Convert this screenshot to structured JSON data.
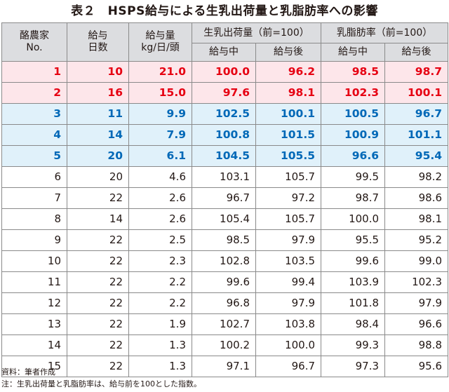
{
  "title": "表２　HSPS給与による生乳出荷量と乳脂肪率への影響",
  "headers": {
    "farm": "酪農家\nNo.",
    "days": "給与\n日数",
    "amount": "給与量\nkg/日/頭",
    "milk_group": "生乳出荷量（前=100）",
    "fat_group": "乳脂肪率（前=100）",
    "during": "給与中",
    "after": "給与後"
  },
  "colors": {
    "red_text": "#e60012",
    "blue_text": "#0068b7",
    "pink_bg": "#fde6ea",
    "blue_bg": "#e0f1fa",
    "header_bg": "#dcdde0"
  },
  "rows": [
    {
      "no": "1",
      "days": "10",
      "amount": "21.0",
      "milk_during": "100.0",
      "milk_after": "96.2",
      "fat_during": "98.5",
      "fat_after": "98.7",
      "style": "red"
    },
    {
      "no": "2",
      "days": "16",
      "amount": "15.0",
      "milk_during": "97.6",
      "milk_after": "98.1",
      "fat_during": "102.3",
      "fat_after": "100.1",
      "style": "red"
    },
    {
      "no": "3",
      "days": "11",
      "amount": "9.9",
      "milk_during": "102.5",
      "milk_after": "100.1",
      "fat_during": "100.5",
      "fat_after": "96.7",
      "style": "blue"
    },
    {
      "no": "4",
      "days": "14",
      "amount": "7.9",
      "milk_during": "100.8",
      "milk_after": "101.5",
      "fat_during": "100.9",
      "fat_after": "101.1",
      "style": "blue"
    },
    {
      "no": "5",
      "days": "20",
      "amount": "6.1",
      "milk_during": "104.5",
      "milk_after": "105.5",
      "fat_during": "96.6",
      "fat_after": "95.4",
      "style": "blue"
    },
    {
      "no": "6",
      "days": "20",
      "amount": "4.6",
      "milk_during": "103.1",
      "milk_after": "105.7",
      "fat_during": "99.5",
      "fat_after": "98.2",
      "style": "plain"
    },
    {
      "no": "7",
      "days": "22",
      "amount": "2.6",
      "milk_during": "96.7",
      "milk_after": "97.2",
      "fat_during": "98.7",
      "fat_after": "98.6",
      "style": "plain"
    },
    {
      "no": "8",
      "days": "14",
      "amount": "2.6",
      "milk_during": "105.4",
      "milk_after": "105.7",
      "fat_during": "100.0",
      "fat_after": "98.1",
      "style": "plain"
    },
    {
      "no": "9",
      "days": "22",
      "amount": "2.5",
      "milk_during": "98.5",
      "milk_after": "97.9",
      "fat_during": "95.5",
      "fat_after": "95.2",
      "style": "plain"
    },
    {
      "no": "10",
      "days": "22",
      "amount": "2.3",
      "milk_during": "102.8",
      "milk_after": "103.5",
      "fat_during": "99.6",
      "fat_after": "99.0",
      "style": "plain"
    },
    {
      "no": "11",
      "days": "22",
      "amount": "2.2",
      "milk_during": "99.6",
      "milk_after": "99.4",
      "fat_during": "103.9",
      "fat_after": "102.3",
      "style": "plain"
    },
    {
      "no": "12",
      "days": "22",
      "amount": "2.2",
      "milk_during": "96.8",
      "milk_after": "97.9",
      "fat_during": "101.8",
      "fat_after": "97.9",
      "style": "plain"
    },
    {
      "no": "13",
      "days": "22",
      "amount": "1.9",
      "milk_during": "102.7",
      "milk_after": "103.8",
      "fat_during": "98.4",
      "fat_after": "96.6",
      "style": "plain"
    },
    {
      "no": "14",
      "days": "22",
      "amount": "1.3",
      "milk_during": "100.2",
      "milk_after": "100.0",
      "fat_during": "99.3",
      "fat_after": "98.8",
      "style": "plain"
    },
    {
      "no": "15",
      "days": "22",
      "amount": "1.3",
      "milk_during": "97.1",
      "milk_after": "96.7",
      "fat_during": "97.3",
      "fat_after": "95.6",
      "style": "plain"
    }
  ],
  "notes": {
    "source": "資料：筆者作成",
    "note": "注：生乳出荷量と乳脂肪率は、給与前を100とした指数。"
  }
}
